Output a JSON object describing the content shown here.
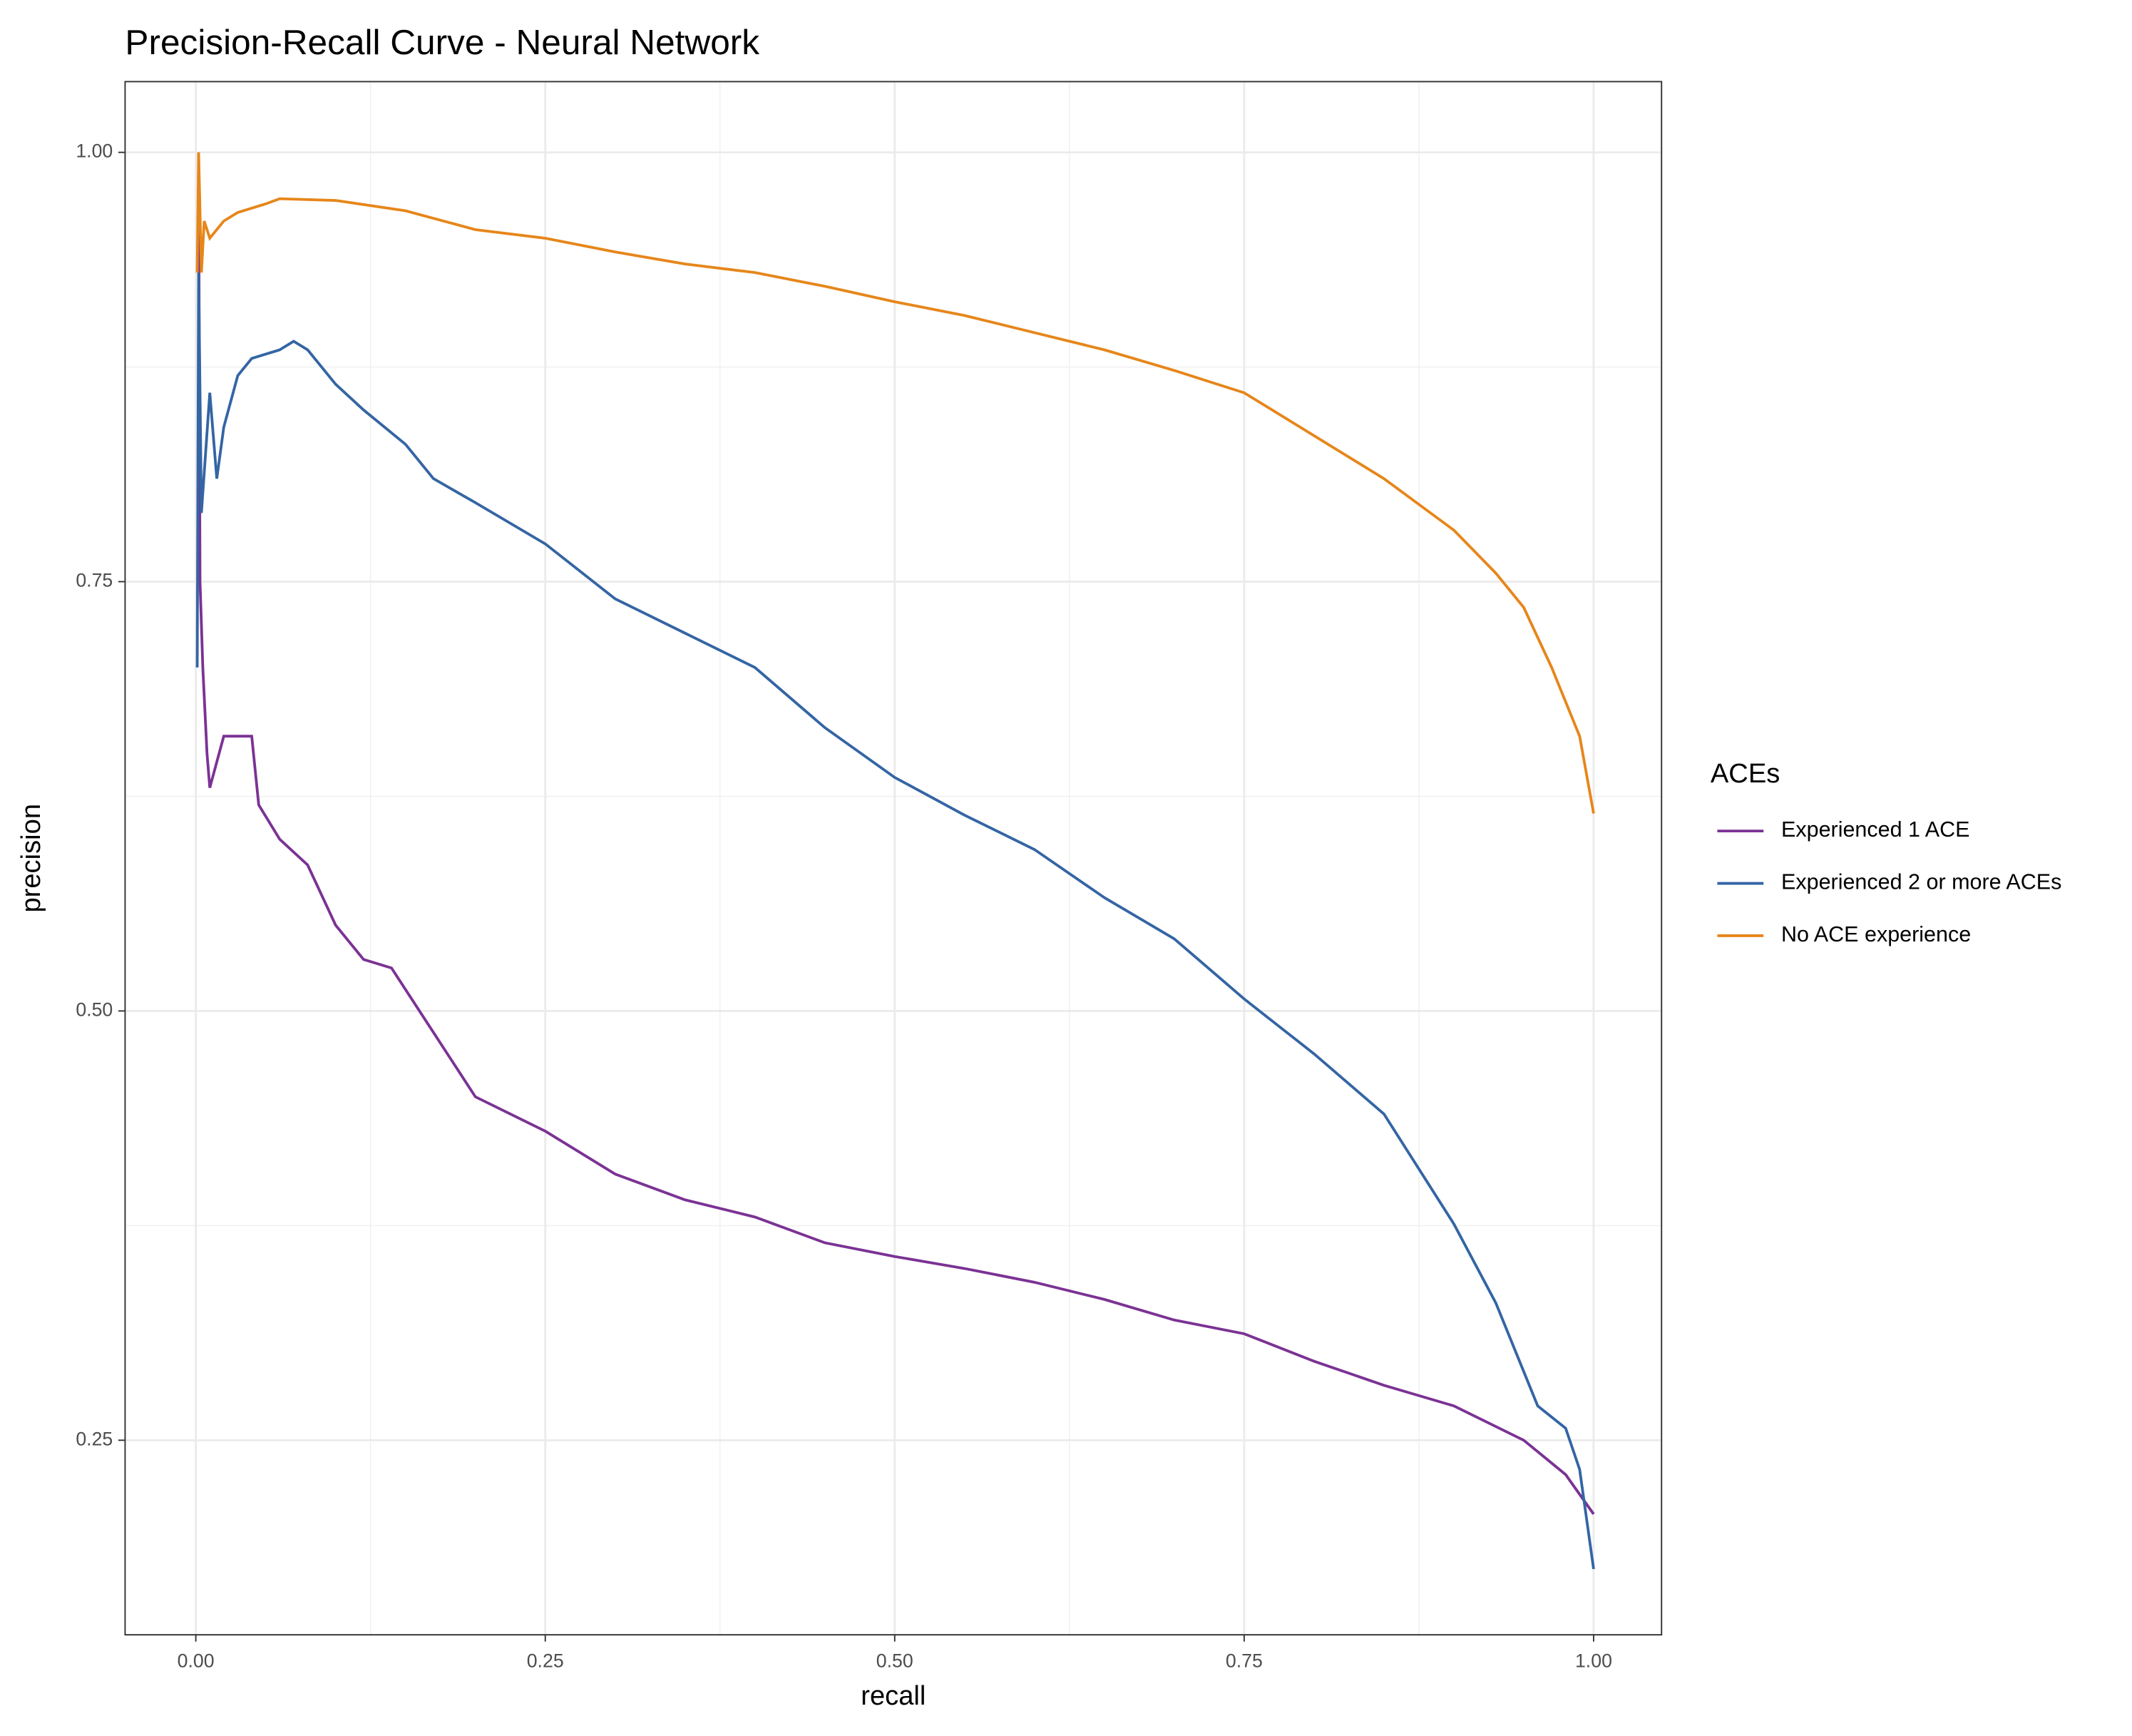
{
  "chart_data": {
    "type": "line",
    "title": "Precision-Recall Curve - Neural Network",
    "x_label": "recall",
    "y_label": "precision",
    "legend_title": "ACEs",
    "legend_position": "right",
    "grid": true,
    "xlim": [
      -0.0506,
      1.0486
    ],
    "ylim": [
      0.1367,
      1.0412
    ],
    "xticks": [
      {
        "value": 0,
        "label": "0.00"
      },
      0.25,
      {
        "value": 0.5,
        "label": "0.50"
      },
      0.75,
      {
        "value": 1,
        "label": "1.00"
      }
    ],
    "yticks": [
      0.25,
      {
        "value": 0.5,
        "label": "0.50"
      },
      0.75,
      {
        "value": 1,
        "label": "1.00"
      }
    ],
    "x_minor_grid": [
      0.125,
      0.375,
      0.625,
      0.875
    ],
    "y_minor_grid": [
      0.375,
      0.625,
      0.875
    ],
    "series": [
      {
        "name": "Experienced 1 ACE",
        "color": "#7b3294",
        "x": [
          0.002,
          0.003,
          0.005,
          0.008,
          0.01,
          0.02,
          0.03,
          0.04,
          0.045,
          0.06,
          0.08,
          0.1,
          0.12,
          0.14,
          0.16,
          0.18,
          0.2,
          0.25,
          0.3,
          0.35,
          0.4,
          0.45,
          0.5,
          0.55,
          0.6,
          0.65,
          0.7,
          0.75,
          0.8,
          0.85,
          0.9,
          0.95,
          0.98,
          1.0
        ],
        "values": [
          1.0,
          0.75,
          0.7,
          0.65,
          0.63,
          0.66,
          0.66,
          0.66,
          0.62,
          0.6,
          0.585,
          0.55,
          0.53,
          0.525,
          0.5,
          0.475,
          0.45,
          0.43,
          0.405,
          0.39,
          0.38,
          0.365,
          0.357,
          0.35,
          0.342,
          0.332,
          0.32,
          0.312,
          0.296,
          0.282,
          0.27,
          0.25,
          0.23,
          0.207
        ]
      },
      {
        "name": "Experienced 2 or more ACEs",
        "color": "#3465a4",
        "x": [
          0.001,
          0.002,
          0.004,
          0.01,
          0.015,
          0.02,
          0.03,
          0.04,
          0.06,
          0.07,
          0.08,
          0.1,
          0.12,
          0.15,
          0.17,
          0.2,
          0.25,
          0.3,
          0.35,
          0.4,
          0.45,
          0.5,
          0.55,
          0.6,
          0.65,
          0.7,
          0.75,
          0.8,
          0.85,
          0.9,
          0.93,
          0.96,
          0.98,
          0.99,
          1.0
        ],
        "values": [
          0.7,
          0.93,
          0.79,
          0.86,
          0.81,
          0.84,
          0.87,
          0.88,
          0.885,
          0.89,
          0.885,
          0.865,
          0.85,
          0.83,
          0.81,
          0.796,
          0.772,
          0.74,
          0.72,
          0.7,
          0.665,
          0.636,
          0.614,
          0.594,
          0.566,
          0.542,
          0.507,
          0.475,
          0.44,
          0.376,
          0.33,
          0.27,
          0.257,
          0.233,
          0.175
        ]
      },
      {
        "name": "No ACE experience",
        "color": "#e6861a",
        "x": [
          0.001,
          0.002,
          0.004,
          0.006,
          0.01,
          0.02,
          0.03,
          0.05,
          0.06,
          0.1,
          0.15,
          0.2,
          0.25,
          0.3,
          0.35,
          0.4,
          0.45,
          0.5,
          0.55,
          0.6,
          0.65,
          0.7,
          0.75,
          0.8,
          0.85,
          0.9,
          0.93,
          0.95,
          0.97,
          0.99,
          1.0
        ],
        "values": [
          0.93,
          1.0,
          0.93,
          0.96,
          0.95,
          0.96,
          0.965,
          0.97,
          0.973,
          0.972,
          0.966,
          0.955,
          0.95,
          0.942,
          0.935,
          0.93,
          0.922,
          0.913,
          0.905,
          0.895,
          0.885,
          0.873,
          0.86,
          0.835,
          0.81,
          0.78,
          0.755,
          0.735,
          0.7,
          0.66,
          0.615
        ]
      }
    ]
  }
}
